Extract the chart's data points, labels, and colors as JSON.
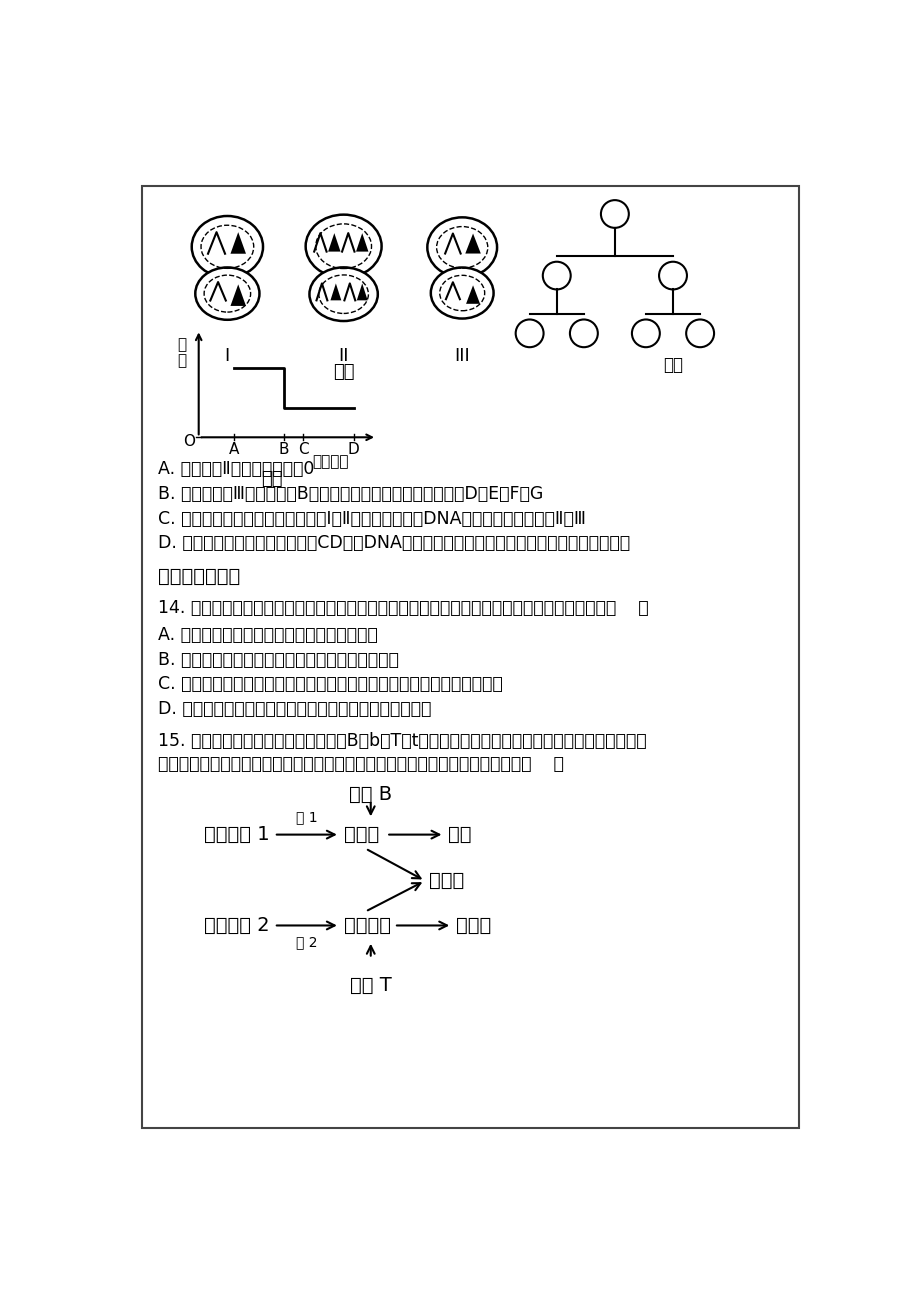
{
  "page_bg": "#ffffff",
  "border_color": "#444444",
  "lines_abcd": [
    "A. 图甲细胞Ⅱ中的四分体数是0",
    "B. 若图甲中的Ⅲ为图乙中的B，则成熟的生殖细胞应为图乙中的D、E、F、G",
    "C. 图甲中存在同源染色体的细胞是Ⅰ和Ⅱ，染色体数与核DNA分子数一致的细胞是Ⅱ和Ⅲ",
    "D. 若图丙中纵坐标是染色体数且CD段核DNA分子数是染色体数的两倍，该曲线可表示减数分裂"
  ],
  "section_title": "二、多项选择题",
  "q14": "14. 孟德尔用豌豆进行杂交实验，成功的揭示了遗传的两条基本规律。下列相关叙述不正确的是（    ）",
  "q14a": "A. 分离定律不能用于分析两对等位基因的遗传",
  "q14b": "B. 自由组合定律也能用于分析一对等位基因的遗传",
  "q14c": "C. 基因的分离发生在配子形成过程，基因的自由组合发生在合子形成过程",
  "q14d": "D. 非同源染色体自由组合，使所有非等位基因也自由组合",
  "q15_line1": "15. 某种蛇体色的遗传如图所示，基因B、b和T、t遵循自由组合定律，当两种色素都没有时表现为白",
  "q15_line2": "色。选纯合的黑蛇与纯合的橘红蛇作为亲本进行杂交，下列有关叙述不正确的是（    ）",
  "jiyinB": "基因 B",
  "qiantiWZ1": "前体物质 1",
  "mei1": "酶 1",
  "heiSuSu": "黑色素",
  "heiShe": "黑蛇",
  "huaWenShe": "花纹蛇",
  "qiantiWZ2": "前体物质 2",
  "mei2": "酶 2",
  "juHongSuSu": "橘红色素",
  "juHongShe": "橘红蛇",
  "jiyinT": "基因 T",
  "tujiashuming": "图甲",
  "tuyi_label": "图乙",
  "tubing_label": "图丙",
  "fenlie_label": "分裂时期",
  "shuliang_label": "数量"
}
